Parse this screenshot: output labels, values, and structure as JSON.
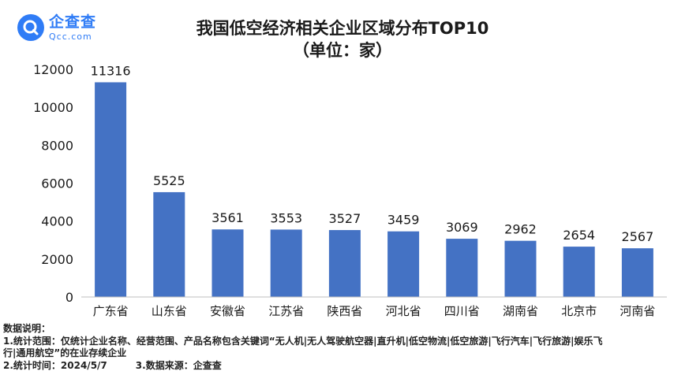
{
  "brand": {
    "name_cn": "企查查",
    "name_en": "Qcc.com",
    "color": "#2f7cf6"
  },
  "chart_data": {
    "type": "bar",
    "title": "我国低空经济相关企业区域分布TOP10",
    "subtitle": "（单位：家）",
    "categories": [
      "广东省",
      "山东省",
      "安徽省",
      "江苏省",
      "陕西省",
      "河北省",
      "四川省",
      "湖南省",
      "北京市",
      "河南省"
    ],
    "values": [
      11316,
      5525,
      3561,
      3553,
      3527,
      3459,
      3069,
      2962,
      2654,
      2567
    ],
    "ylim": [
      0,
      12000
    ],
    "yticks": [
      0,
      2000,
      4000,
      6000,
      8000,
      10000,
      12000
    ],
    "bar_color": "#4472c4",
    "grid": false,
    "data_labels": true
  },
  "notes": {
    "heading": "数据说明：",
    "line1a": "1.统计范围：仅统计企业名称、经营范围、产品名称包含关键词“无人机|无人驾驶航空器|直升机|低空物流|低空旅游|飞行汽车|飞行旅游|娱乐飞",
    "line1b": "行|通用航空”的在业存续企业",
    "line2": "2.统计时间：2024/5/7",
    "line3": "3.数据来源：企查查"
  }
}
